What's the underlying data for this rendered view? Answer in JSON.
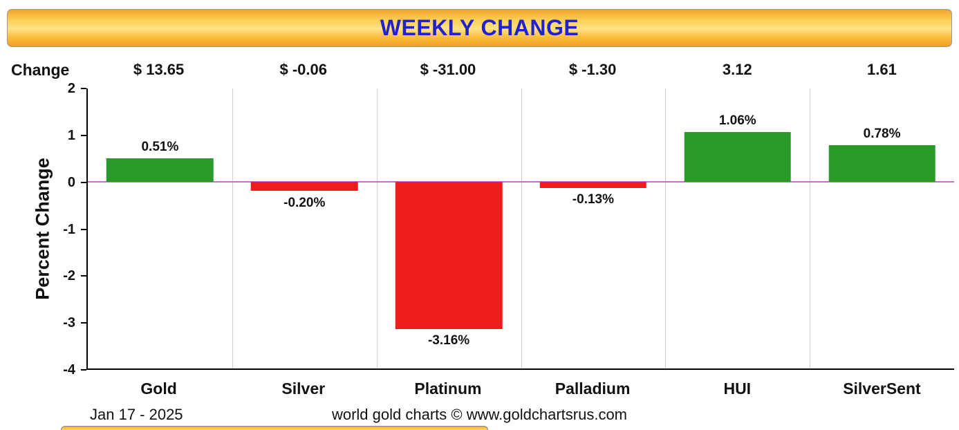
{
  "banner": {
    "title": "WEEKLY CHANGE"
  },
  "change_row": {
    "label": "Change"
  },
  "chart_data": {
    "type": "bar",
    "title": "WEEKLY CHANGE",
    "ylabel": "Percent Change",
    "categories": [
      "Gold",
      "Silver",
      "Platinum",
      "Palladium",
      "HUI",
      "SilverSent"
    ],
    "values": [
      0.51,
      -0.2,
      -3.16,
      -0.13,
      1.06,
      0.78
    ],
    "value_labels": [
      "0.51%",
      "-0.20%",
      "-3.16%",
      "-0.13%",
      "1.06%",
      "0.78%"
    ],
    "change_values": [
      "$ 13.65",
      "$ -0.06",
      "$ -31.00",
      "$ -1.30",
      "3.12",
      "1.61"
    ],
    "ylim": [
      -4,
      2
    ],
    "yticks": [
      2,
      1,
      0,
      -1,
      -2,
      -3,
      -4
    ],
    "grid": "vertical-between-categories",
    "legend": "none",
    "positive_color": "#2a9b2a",
    "negative_color": "#ee1c1c",
    "zero_line_color": "#d466d4",
    "axis_color": "#000000",
    "title_color": "#2222cc"
  },
  "footer": {
    "date": "Jan 17 - 2025",
    "credit": "world gold charts © www.goldchartsrus.com"
  }
}
